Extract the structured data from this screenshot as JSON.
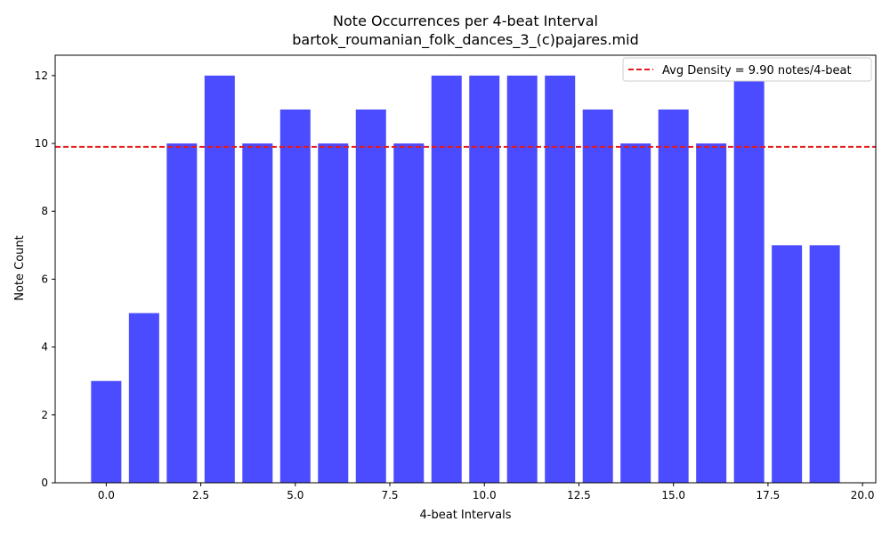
{
  "chart_data": {
    "type": "bar",
    "title": "Note Occurrences per 4-beat Interval",
    "subtitle": "bartok_roumanian_folk_dances_3_(c)pajares.mid",
    "xlabel": "4-beat Intervals",
    "ylabel": "Note Count",
    "x": [
      0,
      1,
      2,
      3,
      4,
      5,
      6,
      7,
      8,
      9,
      10,
      11,
      12,
      13,
      14,
      15,
      16,
      17,
      18,
      19
    ],
    "values": [
      3,
      5,
      10,
      12,
      10,
      11,
      10,
      11,
      10,
      12,
      12,
      12,
      12,
      11,
      10,
      11,
      10,
      12,
      7,
      7
    ],
    "xlim": [
      -1.35,
      20.35
    ],
    "ylim": [
      0,
      12.6
    ],
    "xticks": [
      0.0,
      2.5,
      5.0,
      7.5,
      10.0,
      12.5,
      15.0,
      17.5,
      20.0
    ],
    "xtick_labels": [
      "0.0",
      "2.5",
      "5.0",
      "7.5",
      "10.0",
      "12.5",
      "15.0",
      "17.5",
      "20.0"
    ],
    "yticks": [
      0,
      2,
      4,
      6,
      8,
      10,
      12
    ],
    "ytick_labels": [
      "0",
      "2",
      "4",
      "6",
      "8",
      "10",
      "12"
    ],
    "bar_color": "#4b4bff",
    "average": {
      "value": 9.9,
      "label": "Avg Density = 9.90 notes/4-beat",
      "color": "#e41a1c",
      "style": "dashed"
    },
    "legend_position": "top-right",
    "grid": false
  }
}
